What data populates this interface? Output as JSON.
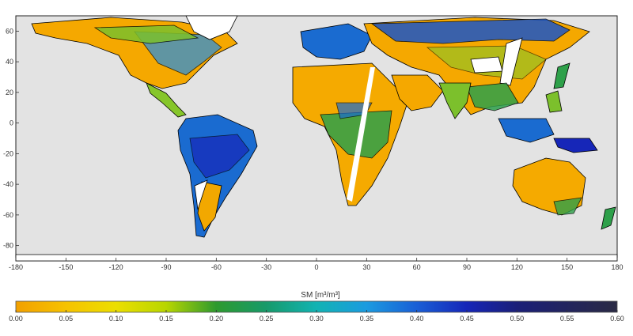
{
  "map": {
    "lon_ticks": [
      "-180",
      "-150",
      "-120",
      "-90",
      "-60",
      "-30",
      "0",
      "30",
      "60",
      "90",
      "120",
      "150",
      "180"
    ],
    "lat_ticks": [
      "60",
      "40",
      "20",
      "0",
      "-20",
      "-40",
      "-60",
      "-80"
    ],
    "ocean_color": "#e3e3e3",
    "no_data_color": "#ffffff",
    "coastline_color": "#000000"
  },
  "colorbar": {
    "title": "SM [m³/m³]",
    "tick_labels": [
      "0.00",
      "0.05",
      "0.10",
      "0.15",
      "0.20",
      "0.25",
      "0.30",
      "0.35",
      "0.40",
      "0.45",
      "0.50",
      "0.55",
      "0.60"
    ],
    "range": [
      0.0,
      0.6
    ],
    "colors": [
      "#f2a000",
      "#f6c200",
      "#ecde00",
      "#b8d600",
      "#6fbe26",
      "#2e9a2e",
      "#179a6a",
      "#12b3b3",
      "#1b9be0",
      "#1a5fd6",
      "#1626b8",
      "#1b1f78",
      "#2a2a44"
    ]
  }
}
